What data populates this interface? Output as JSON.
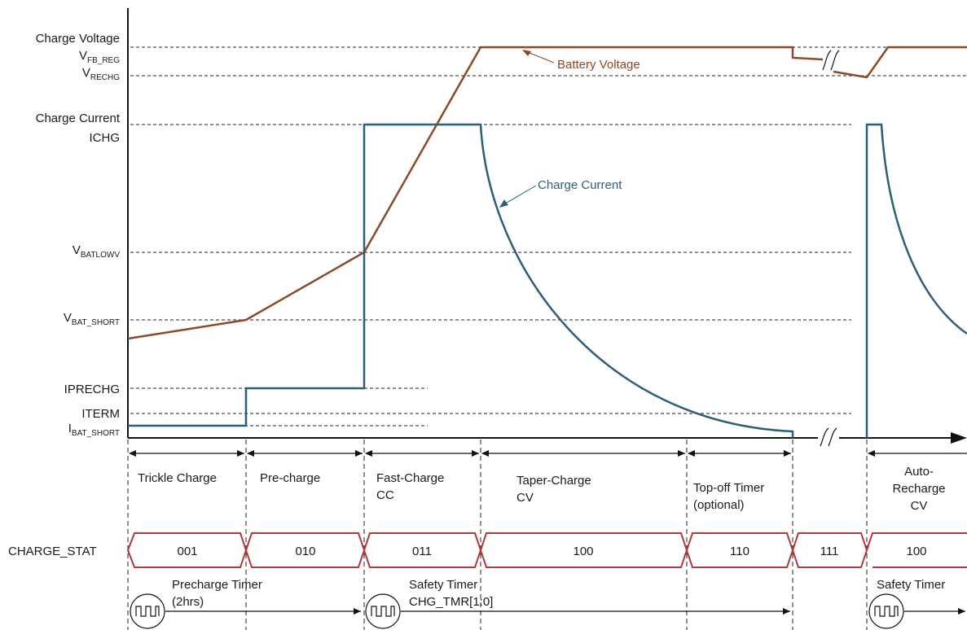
{
  "labels": {
    "charge_voltage": "Charge Voltage",
    "vfb_reg_main": "V",
    "vfb_reg_sub": "FB_REG",
    "vrechg_main": "V",
    "vrechg_sub": "RECHG",
    "charge_current": "Charge Current",
    "ichg": "ICHG",
    "vbatlowv_main": "V",
    "vbatlowv_sub": "BATLOWV",
    "vbat_short_main": "V",
    "vbat_short_sub": "BAT_SHORT",
    "iprechg": "IPRECHG",
    "iterm": "ITERM",
    "ibat_short_main": "I",
    "ibat_short_sub": "BAT_SHORT"
  },
  "annotations": {
    "battery_voltage": "Battery Voltage",
    "charge_current": "Charge Current"
  },
  "phases": {
    "trickle": "Trickle Charge",
    "precharge": "Pre-charge",
    "fastcharge_1": "Fast-Charge",
    "fastcharge_2": "CC",
    "taper_1": "Taper-Charge",
    "taper_2": "CV",
    "topoff_1": "Top-off Timer",
    "topoff_2": "(optional)",
    "auto_1": "Auto-",
    "auto_2": "Recharge",
    "auto_3": "CV"
  },
  "status": {
    "label": "CHARGE_STAT",
    "codes": [
      "001",
      "010",
      "011",
      "100",
      "110",
      "111",
      "100"
    ]
  },
  "timers": {
    "precharge_1": "Precharge Timer",
    "precharge_2": "(2hrs)",
    "safety_1": "Safety Timer",
    "safety_2": "CHG_TMR[1:0]",
    "safety_auto": "Safety Timer"
  },
  "colors": {
    "voltage": "#8b4a26",
    "current": "#2e5f78",
    "status": "#b03a3a"
  }
}
